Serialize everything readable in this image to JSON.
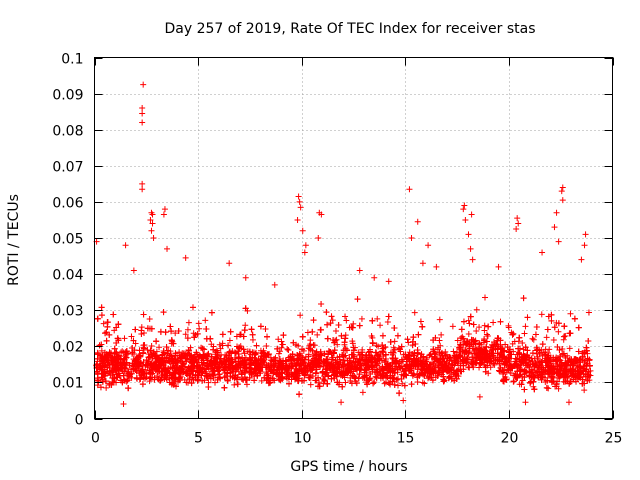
{
  "chart_data": {
    "type": "scatter",
    "title": "Day 257 of 2019, Rate Of TEC Index for receiver stas",
    "xlabel": "GPS time / hours",
    "ylabel": "ROTI / TECUs",
    "xlim": [
      0,
      25
    ],
    "ylim": [
      0,
      0.1
    ],
    "xticks": [
      0,
      5,
      10,
      15,
      20,
      25
    ],
    "xtick_labels": [
      "0",
      "5",
      "10",
      "15",
      "20",
      "25"
    ],
    "yticks": [
      0,
      0.01,
      0.02,
      0.03,
      0.04,
      0.05,
      0.06,
      0.07,
      0.08,
      0.09,
      0.1
    ],
    "ytick_labels": [
      "0",
      "0.01",
      "0.02",
      "0.03",
      "0.04",
      "0.05",
      "0.06",
      "0.07",
      "0.08",
      "0.09",
      "0.1"
    ],
    "grid": true,
    "marker": "+",
    "color": "#ff0000",
    "series": [
      {
        "name": "ROTI",
        "points": [
          [
            2.35,
            0.0925
          ],
          [
            2.3,
            0.086
          ],
          [
            2.3,
            0.0845
          ],
          [
            2.3,
            0.082
          ],
          [
            2.3,
            0.065
          ],
          [
            2.3,
            0.0635
          ],
          [
            2.75,
            0.057
          ],
          [
            2.8,
            0.0565
          ],
          [
            3.4,
            0.058
          ],
          [
            3.35,
            0.0565
          ],
          [
            2.7,
            0.055
          ],
          [
            2.8,
            0.054
          ],
          [
            2.75,
            0.052
          ],
          [
            2.85,
            0.05
          ],
          [
            3.5,
            0.047
          ],
          [
            0.1,
            0.049
          ],
          [
            1.5,
            0.048
          ],
          [
            9.85,
            0.0615
          ],
          [
            9.9,
            0.06
          ],
          [
            9.95,
            0.0585
          ],
          [
            10.85,
            0.057
          ],
          [
            10.95,
            0.0565
          ],
          [
            9.8,
            0.055
          ],
          [
            10.05,
            0.052
          ],
          [
            10.8,
            0.05
          ],
          [
            10.2,
            0.048
          ],
          [
            10.15,
            0.046
          ],
          [
            15.2,
            0.0635
          ],
          [
            15.6,
            0.0545
          ],
          [
            15.3,
            0.05
          ],
          [
            16.1,
            0.048
          ],
          [
            15.85,
            0.043
          ],
          [
            17.85,
            0.059
          ],
          [
            17.8,
            0.058
          ],
          [
            18.2,
            0.0565
          ],
          [
            17.9,
            0.055
          ],
          [
            18.05,
            0.051
          ],
          [
            18.15,
            0.047
          ],
          [
            18.25,
            0.044
          ],
          [
            20.4,
            0.0555
          ],
          [
            20.45,
            0.054
          ],
          [
            20.35,
            0.0525
          ],
          [
            22.6,
            0.064
          ],
          [
            22.55,
            0.063
          ],
          [
            22.6,
            0.0605
          ],
          [
            22.3,
            0.057
          ],
          [
            22.2,
            0.053
          ],
          [
            22.4,
            0.049
          ],
          [
            21.6,
            0.046
          ],
          [
            23.7,
            0.051
          ],
          [
            23.65,
            0.048
          ],
          [
            23.5,
            0.044
          ],
          [
            12.8,
            0.041
          ],
          [
            13.5,
            0.039
          ],
          [
            14.2,
            0.038
          ],
          [
            16.5,
            0.042
          ],
          [
            19.5,
            0.042
          ],
          [
            6.5,
            0.043
          ],
          [
            4.4,
            0.0445
          ],
          [
            1.9,
            0.041
          ],
          [
            7.3,
            0.039
          ],
          [
            8.7,
            0.037
          ],
          [
            11.9,
            0.0045
          ],
          [
            1.4,
            0.004
          ],
          [
            14.9,
            0.005
          ],
          [
            20.8,
            0.0045
          ],
          [
            22.9,
            0.0045
          ],
          [
            18.6,
            0.006
          ]
        ]
      }
    ]
  }
}
